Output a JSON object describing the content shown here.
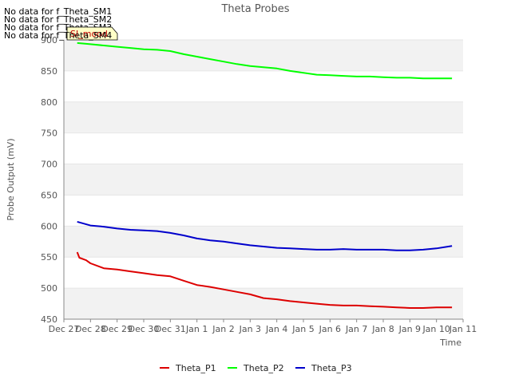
{
  "chart_data": {
    "type": "line",
    "title": "Theta Probes",
    "xlabel": "Time",
    "ylabel": "Probe Output (mV)",
    "ylim": [
      450,
      900
    ],
    "yticks": [
      450,
      500,
      550,
      600,
      650,
      700,
      750,
      800,
      850,
      900
    ],
    "xlim": [
      "2022-12-27",
      "2023-01-11"
    ],
    "xtick_labels": [
      "Dec 27",
      "Dec 28",
      "Dec 29",
      "Dec 30",
      "Dec 31",
      "Jan 1",
      "Jan 2",
      "Jan 3",
      "Jan 4",
      "Jan 5",
      "Jan 6",
      "Jan 7",
      "Jan 8",
      "Jan 9",
      "Jan 10",
      "Jan 11"
    ],
    "grid": "horizontal bands",
    "legend_position": "bottom",
    "no_data_messages": [
      "No data for f_Theta_SM1",
      "No data for f_Theta_SM2",
      "No data for f_Theta_SM3",
      "No data for f_Theta_SM4"
    ],
    "annotation": "SI_mood",
    "series": [
      {
        "name": "Theta_P1",
        "color": "#dd0000",
        "x": [
          "2022-12-27T12:00",
          "2022-12-27T14:00",
          "2022-12-27T20:00",
          "2022-12-28T00:00",
          "2022-12-28T12:00",
          "2022-12-29T00:00",
          "2022-12-29T12:00",
          "2022-12-30T00:00",
          "2022-12-30T12:00",
          "2022-12-31T00:00",
          "2022-12-31T12:00",
          "2023-01-01T00:00",
          "2023-01-01T12:00",
          "2023-01-02T00:00",
          "2023-01-02T12:00",
          "2023-01-03T00:00",
          "2023-01-03T12:00",
          "2023-01-04T00:00",
          "2023-01-04T12:00",
          "2023-01-05T00:00",
          "2023-01-05T12:00",
          "2023-01-06T00:00",
          "2023-01-06T12:00",
          "2023-01-07T00:00",
          "2023-01-07T12:00",
          "2023-01-08T00:00",
          "2023-01-08T12:00",
          "2023-01-09T00:00",
          "2023-01-09T12:00",
          "2023-01-10T00:00",
          "2023-01-10T14:00"
        ],
        "y": [
          558,
          549,
          545,
          540,
          532,
          530,
          527,
          524,
          521,
          519,
          512,
          505,
          502,
          498,
          494,
          490,
          484,
          482,
          479,
          477,
          475,
          473,
          472,
          472,
          471,
          470,
          469,
          468,
          468,
          469,
          469
        ]
      },
      {
        "name": "Theta_P2",
        "color": "#00ff00",
        "x": [
          "2022-12-27T12:00",
          "2022-12-28T00:00",
          "2022-12-28T12:00",
          "2022-12-29T00:00",
          "2022-12-29T12:00",
          "2022-12-30T00:00",
          "2022-12-30T12:00",
          "2022-12-31T00:00",
          "2022-12-31T12:00",
          "2023-01-01T00:00",
          "2023-01-01T12:00",
          "2023-01-02T00:00",
          "2023-01-02T12:00",
          "2023-01-03T00:00",
          "2023-01-03T12:00",
          "2023-01-04T00:00",
          "2023-01-04T12:00",
          "2023-01-05T00:00",
          "2023-01-05T12:00",
          "2023-01-06T00:00",
          "2023-01-06T12:00",
          "2023-01-07T00:00",
          "2023-01-07T12:00",
          "2023-01-08T00:00",
          "2023-01-08T12:00",
          "2023-01-09T00:00",
          "2023-01-09T12:00",
          "2023-01-10T00:00",
          "2023-01-10T14:00"
        ],
        "y": [
          895,
          893,
          891,
          889,
          887,
          885,
          884,
          882,
          877,
          873,
          869,
          865,
          861,
          858,
          856,
          854,
          850,
          847,
          844,
          843,
          842,
          841,
          841,
          840,
          839,
          839,
          838,
          838,
          838
        ]
      },
      {
        "name": "Theta_P3",
        "color": "#0000cc",
        "x": [
          "2022-12-27T12:00",
          "2022-12-28T00:00",
          "2022-12-28T12:00",
          "2022-12-29T00:00",
          "2022-12-29T12:00",
          "2022-12-30T00:00",
          "2022-12-30T12:00",
          "2022-12-31T00:00",
          "2022-12-31T12:00",
          "2023-01-01T00:00",
          "2023-01-01T12:00",
          "2023-01-02T00:00",
          "2023-01-02T12:00",
          "2023-01-03T00:00",
          "2023-01-03T12:00",
          "2023-01-04T00:00",
          "2023-01-04T12:00",
          "2023-01-05T00:00",
          "2023-01-05T12:00",
          "2023-01-06T00:00",
          "2023-01-06T12:00",
          "2023-01-07T00:00",
          "2023-01-07T12:00",
          "2023-01-08T00:00",
          "2023-01-08T12:00",
          "2023-01-09T00:00",
          "2023-01-09T12:00",
          "2023-01-10T00:00",
          "2023-01-10T14:00"
        ],
        "y": [
          607,
          601,
          599,
          596,
          594,
          593,
          592,
          589,
          585,
          580,
          577,
          575,
          572,
          569,
          567,
          565,
          564,
          563,
          562,
          562,
          563,
          562,
          562,
          562,
          561,
          561,
          562,
          564,
          568
        ]
      }
    ]
  }
}
